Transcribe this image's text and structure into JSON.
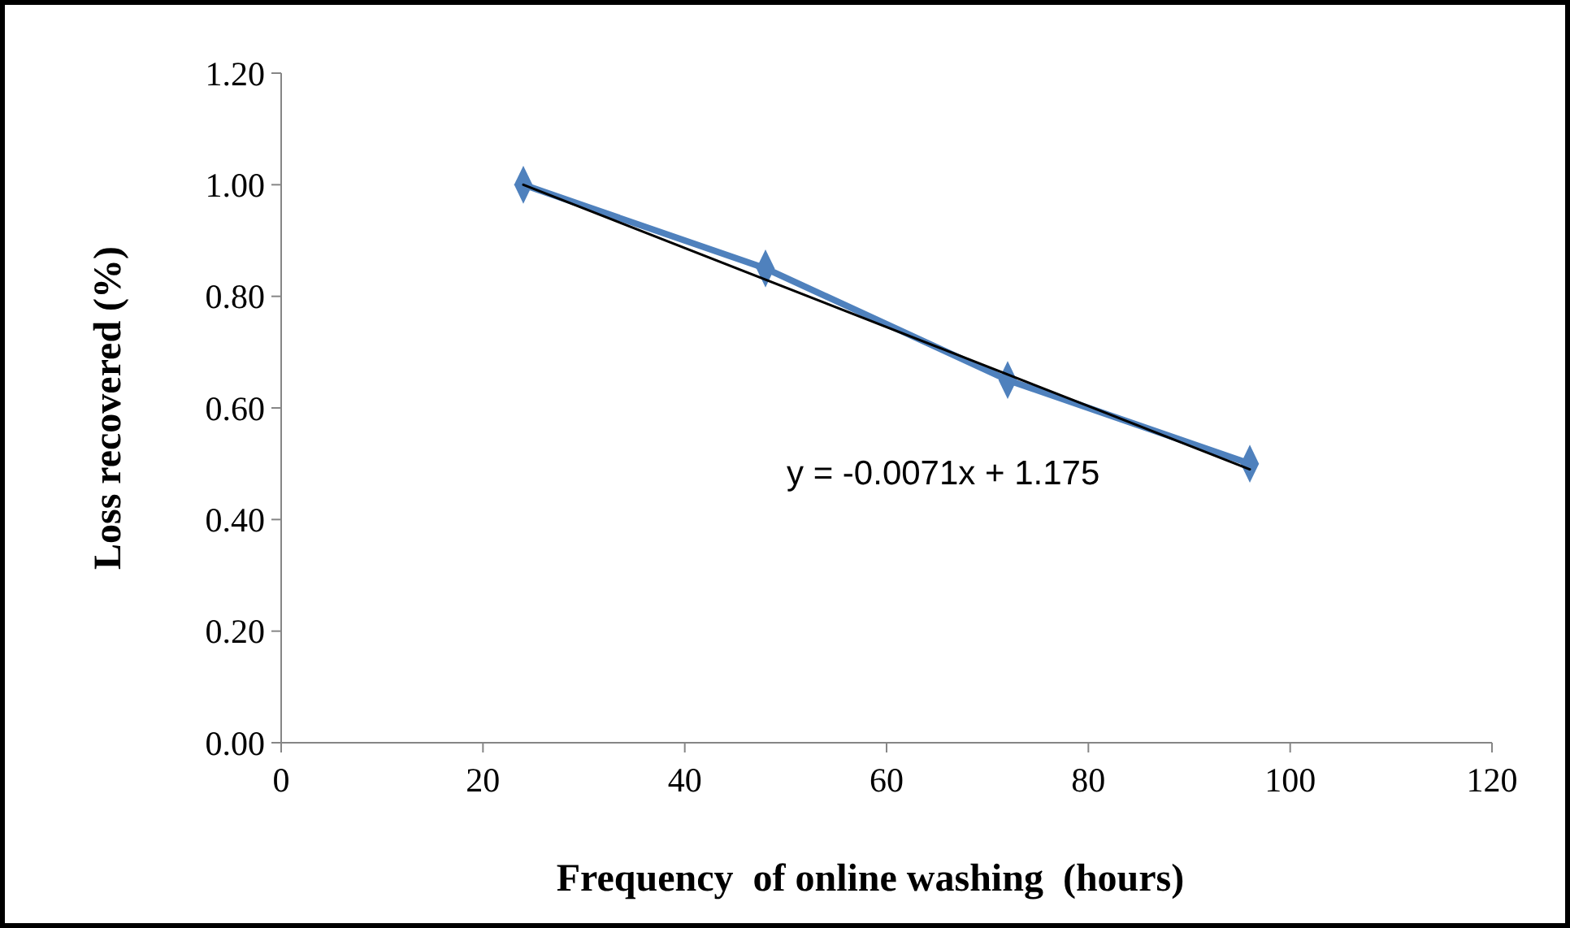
{
  "chart_data": {
    "type": "line",
    "xlabel": "Frequency  of online washing  (hours)",
    "ylabel": "Loss recovered (%)",
    "xlim": [
      0,
      120
    ],
    "xticks": [
      0,
      20,
      40,
      60,
      80,
      100,
      120
    ],
    "ylim": [
      0,
      1.2
    ],
    "yticks": [
      {
        "value": 0,
        "label": "0.00"
      },
      {
        "value": 0.2,
        "label": "0.20"
      },
      {
        "value": 0.4,
        "label": "0.40"
      },
      {
        "value": 0.6,
        "label": "0.60"
      },
      {
        "value": 0.8,
        "label": "0.80"
      },
      {
        "value": 1,
        "label": "1.00"
      },
      {
        "value": 1.2,
        "label": "1.20"
      }
    ],
    "grid": false,
    "series": [
      {
        "color": "#4f81bd",
        "x": [
          24,
          48,
          72,
          96
        ],
        "values": [
          1.0,
          0.85,
          0.65,
          0.5
        ],
        "marker": "diamond",
        "line_style": "solid"
      },
      {
        "type": "line",
        "color": "#000000",
        "x": [
          24,
          96
        ],
        "values": [
          1.0,
          0.49
        ],
        "marker": "none",
        "line_style": "solid"
      }
    ],
    "annotations": [
      "y = -0.0071x + 1.175"
    ]
  }
}
